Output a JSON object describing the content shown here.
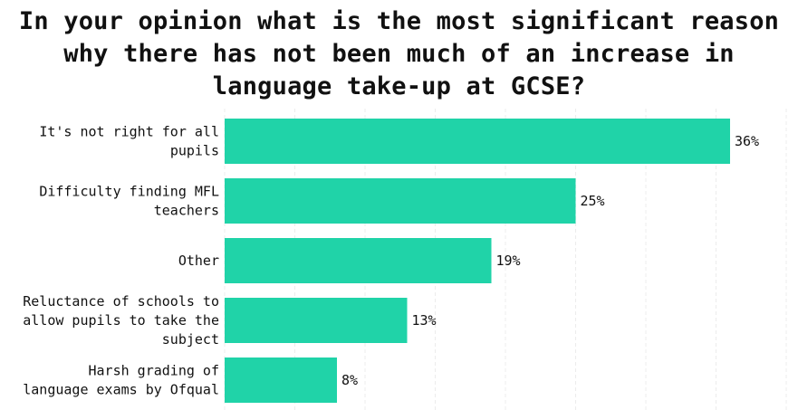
{
  "title_lines": [
    "In your opinion what is the most significant reason",
    "why there has not been much of an increase in",
    "language take-up at GCSE?"
  ],
  "chart_data": {
    "type": "bar",
    "orientation": "horizontal",
    "title": "In your opinion what is the most significant reason why there has not been much of an increase in language take-up at GCSE?",
    "categories": [
      [
        "It's not right for all",
        "pupils"
      ],
      [
        "Difficulty finding MFL",
        "teachers"
      ],
      [
        "Other"
      ],
      [
        "Reluctance of schools to",
        "allow pupils to take the",
        "subject"
      ],
      [
        "Harsh grading of",
        "language exams by Ofqual"
      ]
    ],
    "values": [
      36,
      25,
      19,
      13,
      8
    ],
    "value_labels": [
      "36%",
      "25%",
      "19%",
      "13%",
      "8%"
    ],
    "xlim": [
      0,
      40
    ],
    "grid": true,
    "bar_color": "#20d3a8"
  }
}
